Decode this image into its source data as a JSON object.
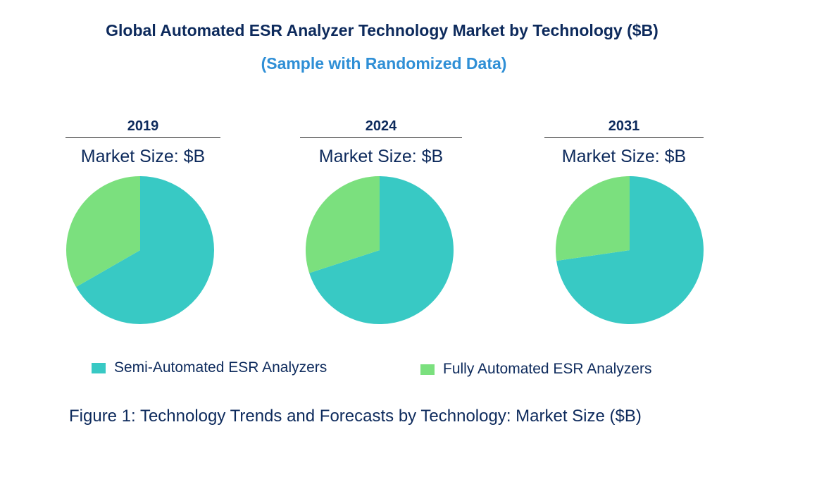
{
  "chart_data": {
    "type": "pie",
    "title": "Global Automated ESR Analyzer Technology Market by  Technology ($B)",
    "subtitle": "(Sample with Randomized Data)",
    "categories": [
      "Semi-Automated ESR Analyzers",
      "Fully Automated ESR Analyzers"
    ],
    "colors": [
      "#38c9c4",
      "#7be07e"
    ],
    "pies": [
      {
        "year": "2019",
        "label": "Market Size: $B",
        "values": [
          66.7,
          33.3
        ]
      },
      {
        "year": "2024",
        "label": "Market Size: $B",
        "values": [
          70.0,
          30.0
        ]
      },
      {
        "year": "2031",
        "label": "Market Size: $B",
        "values": [
          72.7,
          27.3
        ]
      }
    ],
    "legend_position": "bottom",
    "caption": "Figure 1: Technology Trends and Forecasts by Technology: Market Size ($B)"
  }
}
